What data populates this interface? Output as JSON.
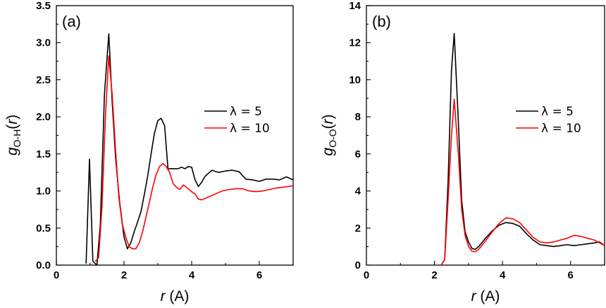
{
  "chart_data": [
    {
      "type": "line",
      "panel_label": "(a)",
      "xlabel_var": "r",
      "xlabel_unit": " (A)",
      "ylabel_var": "g",
      "ylabel_sub": "O-H",
      "ylabel_arg": "r",
      "xlim": [
        0,
        7
      ],
      "ylim": [
        0,
        3.5
      ],
      "xticks": [
        0,
        2,
        4,
        6
      ],
      "yticks": [
        0.0,
        0.5,
        1.0,
        1.5,
        2.0,
        2.5,
        3.0,
        3.5
      ],
      "yticks_text": [
        "0.0",
        "0.5",
        "1.0",
        "1.5",
        "2.0",
        "2.5",
        "3.0",
        "3.5"
      ],
      "legend_position": "center-right",
      "series": [
        {
          "name": "λ = 5",
          "color": "#000000",
          "x": [
            0.88,
            0.98,
            1.08,
            1.2,
            1.3,
            1.42,
            1.55,
            1.65,
            1.75,
            1.87,
            2.0,
            2.1,
            2.2,
            2.3,
            2.4,
            2.5,
            2.6,
            2.7,
            2.8,
            2.9,
            3.0,
            3.1,
            3.2,
            3.3,
            3.4,
            3.5,
            3.6,
            3.7,
            3.8,
            3.9,
            4.0,
            4.1,
            4.2,
            4.3,
            4.4,
            4.6,
            4.8,
            5.0,
            5.2,
            5.4,
            5.6,
            5.8,
            6.0,
            6.2,
            6.4,
            6.6,
            6.8,
            7.0
          ],
          "y": [
            0.02,
            1.43,
            0.05,
            0.0,
            0.55,
            2.3,
            3.12,
            2.2,
            1.45,
            0.85,
            0.38,
            0.22,
            0.3,
            0.45,
            0.58,
            0.72,
            0.95,
            1.2,
            1.5,
            1.78,
            1.95,
            1.98,
            1.88,
            1.3,
            1.3,
            1.3,
            1.3,
            1.32,
            1.3,
            1.33,
            1.32,
            1.15,
            1.06,
            1.12,
            1.2,
            1.28,
            1.25,
            1.27,
            1.28,
            1.26,
            1.16,
            1.15,
            1.13,
            1.16,
            1.16,
            1.15,
            1.19,
            1.15
          ]
        },
        {
          "name": "λ = 10",
          "color": "#ff0000",
          "x": [
            1.15,
            1.25,
            1.35,
            1.45,
            1.55,
            1.65,
            1.75,
            1.85,
            1.95,
            2.05,
            2.15,
            2.25,
            2.35,
            2.45,
            2.55,
            2.65,
            2.75,
            2.85,
            2.95,
            3.05,
            3.15,
            3.25,
            3.35,
            3.45,
            3.55,
            3.65,
            3.75,
            3.85,
            4.0,
            4.1,
            4.2,
            4.3,
            4.5,
            4.7,
            4.9,
            5.1,
            5.3,
            5.5,
            5.7,
            5.9,
            6.1,
            6.3,
            6.5,
            6.7,
            7.0
          ],
          "y": [
            0.05,
            0.1,
            0.8,
            2.0,
            2.82,
            2.3,
            1.55,
            0.9,
            0.55,
            0.38,
            0.25,
            0.22,
            0.22,
            0.3,
            0.45,
            0.65,
            0.85,
            1.05,
            1.22,
            1.33,
            1.37,
            1.33,
            1.25,
            1.1,
            1.05,
            1.02,
            1.08,
            1.05,
            0.99,
            0.96,
            0.89,
            0.88,
            0.92,
            0.96,
            1.0,
            1.02,
            1.03,
            1.03,
            1.0,
            0.99,
            1.0,
            1.02,
            1.04,
            1.05,
            1.07
          ]
        }
      ]
    },
    {
      "type": "line",
      "panel_label": "(b)",
      "xlabel_var": "r",
      "xlabel_unit": " (A)",
      "ylabel_var": "g",
      "ylabel_sub": "O-O",
      "ylabel_arg": "r",
      "xlim": [
        0,
        7
      ],
      "ylim": [
        0,
        14
      ],
      "xticks": [
        0,
        2,
        4,
        6
      ],
      "yticks": [
        0,
        2,
        4,
        6,
        8,
        10,
        12,
        14
      ],
      "yticks_text": [
        "0",
        "2",
        "4",
        "6",
        "8",
        "10",
        "12",
        "14"
      ],
      "legend_position": "center-right",
      "series": [
        {
          "name": "λ = 5",
          "color": "#000000",
          "x": [
            2.2,
            2.3,
            2.4,
            2.5,
            2.58,
            2.7,
            2.8,
            2.9,
            3.0,
            3.1,
            3.2,
            3.3,
            3.5,
            3.7,
            3.9,
            4.1,
            4.3,
            4.5,
            4.7,
            4.9,
            5.1,
            5.3,
            5.5,
            5.7,
            5.9,
            6.1,
            6.3,
            6.5,
            6.7,
            6.85,
            7.0
          ],
          "y": [
            0.0,
            0.3,
            4.5,
            10.5,
            12.5,
            7.8,
            3.5,
            1.8,
            1.25,
            0.9,
            0.85,
            1.0,
            1.45,
            1.85,
            2.15,
            2.3,
            2.25,
            2.1,
            1.7,
            1.35,
            1.1,
            1.05,
            1.0,
            1.05,
            1.1,
            1.05,
            1.1,
            1.15,
            1.2,
            1.25,
            1.05
          ]
        },
        {
          "name": "λ = 10",
          "color": "#ff0000",
          "x": [
            2.2,
            2.3,
            2.4,
            2.5,
            2.58,
            2.7,
            2.8,
            2.9,
            3.0,
            3.1,
            3.2,
            3.3,
            3.5,
            3.7,
            3.9,
            4.1,
            4.3,
            4.5,
            4.7,
            4.9,
            5.1,
            5.3,
            5.5,
            5.7,
            5.9,
            6.1,
            6.3,
            6.5,
            6.7,
            6.85,
            7.0
          ],
          "y": [
            0.0,
            0.3,
            3.5,
            7.0,
            8.95,
            6.0,
            3.0,
            1.6,
            1.0,
            0.75,
            0.72,
            0.85,
            1.3,
            1.8,
            2.25,
            2.55,
            2.5,
            2.3,
            1.9,
            1.5,
            1.25,
            1.2,
            1.25,
            1.35,
            1.45,
            1.6,
            1.55,
            1.45,
            1.35,
            1.2,
            1.05
          ]
        }
      ]
    }
  ]
}
